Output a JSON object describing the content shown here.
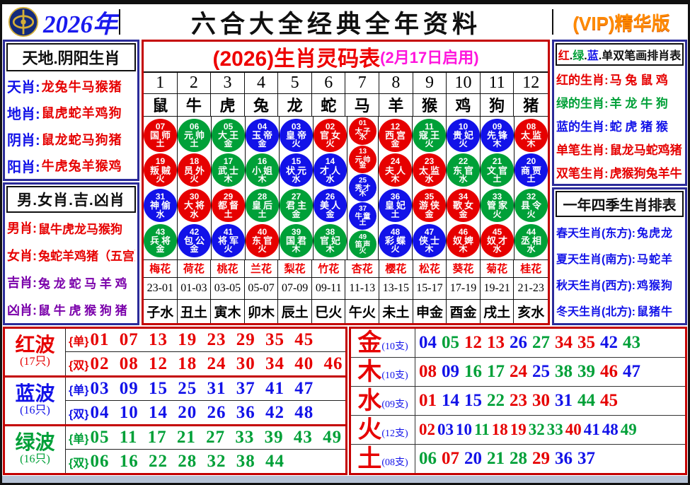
{
  "colors": {
    "red": "#e60000",
    "green": "#00a038",
    "blue": "#1212e8",
    "purple": "#7a00aa",
    "black": "#101010",
    "magenta": "#ff14dd",
    "vip_orange": "#ff8a00",
    "navy_border": "#2b2b99",
    "red_border": "#c40000"
  },
  "header": {
    "year": "2026年",
    "title": "六合大全经典全年资料",
    "vip": "(VIP)精华版",
    "logo": "globe-badge-icon"
  },
  "left_top": {
    "title": "天地.阴阳生肖",
    "rows": [
      {
        "label": "天肖",
        "value": "龙兔牛马猴猪",
        "label_color": "blue",
        "value_color": "red"
      },
      {
        "label": "地肖",
        "value": "鼠虎蛇羊鸡狗",
        "label_color": "blue",
        "value_color": "red"
      },
      {
        "label": "阴肖",
        "value": "鼠龙蛇马狗猪",
        "label_color": "blue",
        "value_color": "red"
      },
      {
        "label": "阳肖",
        "value": "牛虎兔羊猴鸡",
        "label_color": "blue",
        "value_color": "red"
      }
    ]
  },
  "left_bottom": {
    "title": "男.女肖.吉.凶肖",
    "rows": [
      {
        "label": "男肖",
        "value": "鼠牛虎龙马猴狗",
        "label_color": "red",
        "value_color": "red"
      },
      {
        "label": "女肖",
        "value": "兔蛇羊鸡猪（五宫）",
        "label_color": "red",
        "value_color": "red"
      },
      {
        "label": "吉肖",
        "value": "兔 龙 蛇 马 羊 鸡",
        "label_color": "purple",
        "value_color": "purple"
      },
      {
        "label": "凶肖",
        "value": "鼠 牛 虎 猴 狗 猪",
        "label_color": "purple",
        "value_color": "purple"
      }
    ]
  },
  "main_table": {
    "title": "(2026)生肖灵码表",
    "subtitle": "(2月17日启用)",
    "numbers": [
      "1",
      "2",
      "3",
      "4",
      "5",
      "6",
      "7",
      "8",
      "9",
      "10",
      "11",
      "12"
    ],
    "zodiacs": [
      "鼠",
      "牛",
      "虎",
      "兔",
      "龙",
      "蛇",
      "马",
      "羊",
      "猴",
      "鸡",
      "狗",
      "猪"
    ],
    "columns": [
      [
        {
          "n": "07",
          "role": "国师",
          "elem": "土"
        },
        {
          "n": "19",
          "role": "叛贼",
          "elem": "火"
        },
        {
          "n": "31",
          "role": "神偷",
          "elem": "水"
        },
        {
          "n": "43",
          "role": "兵将",
          "elem": "金"
        }
      ],
      [
        {
          "n": "06",
          "role": "元帅",
          "elem": "土"
        },
        {
          "n": "18",
          "role": "员外",
          "elem": "火"
        },
        {
          "n": "30",
          "role": "大将",
          "elem": "水"
        },
        {
          "n": "42",
          "role": "包公",
          "elem": "金"
        }
      ],
      [
        {
          "n": "05",
          "role": "大王",
          "elem": "金"
        },
        {
          "n": "17",
          "role": "武士",
          "elem": "木"
        },
        {
          "n": "29",
          "role": "都督",
          "elem": "土"
        },
        {
          "n": "41",
          "role": "将军",
          "elem": "火"
        }
      ],
      [
        {
          "n": "04",
          "role": "玉帝",
          "elem": "金"
        },
        {
          "n": "16",
          "role": "小姐",
          "elem": "木"
        },
        {
          "n": "28",
          "role": "皇后",
          "elem": "土"
        },
        {
          "n": "40",
          "role": "东官",
          "elem": "火"
        }
      ],
      [
        {
          "n": "03",
          "role": "皇帝",
          "elem": "火"
        },
        {
          "n": "15",
          "role": "状元",
          "elem": "水"
        },
        {
          "n": "27",
          "role": "君主",
          "elem": "金"
        },
        {
          "n": "39",
          "role": "国君",
          "elem": "木"
        }
      ],
      [
        {
          "n": "02",
          "role": "官女",
          "elem": "火"
        },
        {
          "n": "14",
          "role": "才人",
          "elem": "水"
        },
        {
          "n": "26",
          "role": "美人",
          "elem": "金"
        },
        {
          "n": "38",
          "role": "官妃",
          "elem": "木"
        }
      ],
      [
        {
          "n": "01",
          "role": "太子",
          "elem": "水"
        },
        {
          "n": "13",
          "role": "元帅",
          "elem": "金"
        },
        {
          "n": "25",
          "role": "秀才",
          "elem": "木"
        },
        {
          "n": "37",
          "role": "牛童",
          "elem": "土"
        },
        {
          "n": "49",
          "role": "笛声",
          "elem": "火"
        }
      ],
      [
        {
          "n": "12",
          "role": "西宫",
          "elem": "金"
        },
        {
          "n": "24",
          "role": "夫人",
          "elem": "木"
        },
        {
          "n": "36",
          "role": "皇妃",
          "elem": "土"
        },
        {
          "n": "48",
          "role": "彩蝶",
          "elem": "火"
        }
      ],
      [
        {
          "n": "11",
          "role": "寇王",
          "elem": "火"
        },
        {
          "n": "23",
          "role": "太监",
          "elem": "水"
        },
        {
          "n": "35",
          "role": "游侠",
          "elem": "金"
        },
        {
          "n": "47",
          "role": "侠士",
          "elem": "木"
        }
      ],
      [
        {
          "n": "10",
          "role": "贵妃",
          "elem": "火"
        },
        {
          "n": "22",
          "role": "东官",
          "elem": "水"
        },
        {
          "n": "34",
          "role": "歌女",
          "elem": "金"
        },
        {
          "n": "46",
          "role": "奴婢",
          "elem": "木"
        }
      ],
      [
        {
          "n": "09",
          "role": "先锋",
          "elem": "木"
        },
        {
          "n": "21",
          "role": "文官",
          "elem": "土"
        },
        {
          "n": "33",
          "role": "管家",
          "elem": "火"
        },
        {
          "n": "45",
          "role": "奴才",
          "elem": "水"
        }
      ],
      [
        {
          "n": "08",
          "role": "太监",
          "elem": "木"
        },
        {
          "n": "20",
          "role": "商贾",
          "elem": "土"
        },
        {
          "n": "32",
          "role": "县令",
          "elem": "火"
        },
        {
          "n": "44",
          "role": "丞相",
          "elem": "水"
        }
      ]
    ],
    "flowers": [
      "梅花",
      "荷花",
      "桃花",
      "兰花",
      "梨花",
      "竹花",
      "杏花",
      "樱花",
      "松花",
      "葵花",
      "菊花",
      "桂花"
    ],
    "hours": [
      "23-01",
      "01-03",
      "03-05",
      "05-07",
      "07-09",
      "09-11",
      "11-13",
      "13-15",
      "15-17",
      "17-19",
      "19-21",
      "21-23"
    ],
    "branches": [
      "子水",
      "丑土",
      "寅木",
      "卯木",
      "辰土",
      "巳火",
      "午火",
      "未土",
      "申金",
      "酉金",
      "戌土",
      "亥水"
    ]
  },
  "right_top": {
    "title_segments": [
      {
        "text": "红",
        "color": "red"
      },
      {
        "text": ".",
        "color": "black"
      },
      {
        "text": "绿",
        "color": "green"
      },
      {
        "text": ".",
        "color": "black"
      },
      {
        "text": "蓝",
        "color": "blue"
      },
      {
        "text": ".",
        "color": "black"
      },
      {
        "text": "单双笔画排肖表",
        "color": "black"
      }
    ],
    "rows": [
      {
        "label": "红的生肖",
        "value": "马 兔 鼠 鸡",
        "label_color": "red",
        "value_color": "red"
      },
      {
        "label": "绿的生肖",
        "value": "羊 龙 牛 狗",
        "label_color": "green",
        "value_color": "green"
      },
      {
        "label": "蓝的生肖",
        "value": "蛇 虎 猪 猴",
        "label_color": "blue",
        "value_color": "blue"
      },
      {
        "label": "单笔生肖",
        "value": "鼠龙马蛇鸡猪",
        "label_color": "red",
        "value_color": "red"
      },
      {
        "label": "双笔生肖",
        "value": "虎猴狗兔羊牛",
        "label_color": "red",
        "value_color": "red"
      }
    ]
  },
  "right_bottom": {
    "title": "一年四季生肖排表",
    "rows": [
      {
        "label": "春天生肖(东方)",
        "value": "兔虎龙",
        "label_color": "blue",
        "value_color": "blue"
      },
      {
        "label": "夏天生肖(南方)",
        "value": "马蛇羊",
        "label_color": "blue",
        "value_color": "blue"
      },
      {
        "label": "秋天生肖(西方)",
        "value": "鸡猴狗",
        "label_color": "blue",
        "value_color": "blue"
      },
      {
        "label": "冬天生肖(北方)",
        "value": "鼠猪牛",
        "label_color": "blue",
        "value_color": "blue"
      }
    ]
  },
  "waves": {
    "odd_label": "{单}",
    "even_label": "{双}",
    "groups": [
      {
        "name": "红波",
        "count": "(17只)",
        "color": "red",
        "odd": [
          "01",
          "07",
          "13",
          "19",
          "23",
          "29",
          "35",
          "45"
        ],
        "even": [
          "02",
          "08",
          "12",
          "18",
          "24",
          "30",
          "34",
          "40",
          "46"
        ]
      },
      {
        "name": "蓝波",
        "count": "(16只)",
        "color": "blue",
        "odd": [
          "03",
          "09",
          "15",
          "25",
          "31",
          "37",
          "41",
          "47"
        ],
        "even": [
          "04",
          "10",
          "14",
          "20",
          "26",
          "36",
          "42",
          "48"
        ]
      },
      {
        "name": "绿波",
        "count": "(16只)",
        "color": "green",
        "odd": [
          "05",
          "11",
          "17",
          "21",
          "27",
          "33",
          "39",
          "43",
          "49"
        ],
        "even": [
          "06",
          "16",
          "22",
          "28",
          "32",
          "38",
          "44"
        ]
      }
    ]
  },
  "elements": {
    "rows": [
      {
        "name": "金",
        "count": "(10支)",
        "numbers": [
          "04",
          "05",
          "12",
          "13",
          "26",
          "27",
          "34",
          "35",
          "42",
          "43"
        ]
      },
      {
        "name": "木",
        "count": "(10支)",
        "numbers": [
          "08",
          "09",
          "16",
          "17",
          "24",
          "25",
          "38",
          "39",
          "46",
          "47"
        ]
      },
      {
        "name": "水",
        "count": "(09支)",
        "numbers": [
          "01",
          "14",
          "15",
          "22",
          "23",
          "30",
          "31",
          "44",
          "45"
        ]
      },
      {
        "name": "火",
        "count": "(12支)",
        "numbers": [
          "02",
          "03",
          "10",
          "11",
          "18",
          "19",
          "32",
          "33",
          "40",
          "41",
          "48",
          "49"
        ]
      },
      {
        "name": "土",
        "count": "(08支)",
        "numbers": [
          "06",
          "07",
          "20",
          "21",
          "28",
          "29",
          "36",
          "37"
        ]
      }
    ]
  }
}
